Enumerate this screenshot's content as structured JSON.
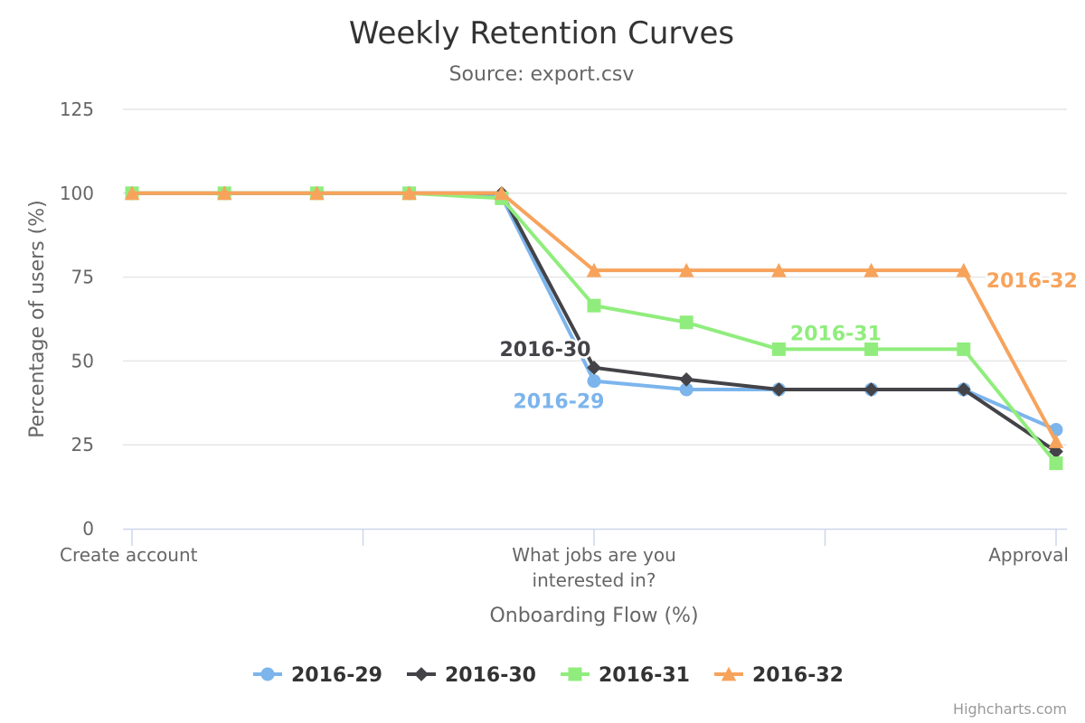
{
  "chart_data": {
    "type": "line",
    "title": "Weekly Retention Curves",
    "subtitle": "Source: export.csv",
    "xlabel": "Onboarding Flow (%)",
    "ylabel": "Percentage of users (%)",
    "ylim": [
      0,
      125
    ],
    "yticks": [
      0,
      25,
      50,
      75,
      100,
      125
    ],
    "categories": [
      "Create account",
      "",
      "",
      "",
      "",
      "What jobs are you interested in?",
      "",
      "",
      "",
      "",
      "Approval"
    ],
    "category_tick_labels": [
      {
        "index": 0,
        "lines": [
          "Create account"
        ]
      },
      {
        "index": 5,
        "lines": [
          "What jobs are you",
          "interested in?"
        ]
      },
      {
        "index": 10,
        "lines": [
          "Approval"
        ]
      }
    ],
    "grid": true,
    "legend_position": "bottom-center",
    "series": [
      {
        "name": "2016-29",
        "color": "#7cb5ec",
        "marker": "circle",
        "values": [
          100,
          100,
          100,
          100,
          99,
          44,
          41.5,
          41.5,
          41.5,
          41.5,
          29.5
        ],
        "label": "2016-29",
        "label_index": 5
      },
      {
        "name": "2016-30",
        "color": "#434348",
        "marker": "diamond",
        "values": [
          100,
          100,
          100,
          100,
          100,
          48,
          44.5,
          41.5,
          41.5,
          41.5,
          23
        ],
        "label": "2016-30",
        "label_index": 5
      },
      {
        "name": "2016-31",
        "color": "#90ed7d",
        "marker": "square",
        "values": [
          100,
          100,
          100,
          100,
          98.5,
          66.5,
          61.5,
          53.5,
          53.5,
          53.5,
          19.5
        ],
        "label": "2016-31",
        "label_index": 7
      },
      {
        "name": "2016-32",
        "color": "#f7a35c",
        "marker": "triangle",
        "values": [
          100,
          100,
          100,
          100,
          100,
          77,
          77,
          77,
          77,
          77,
          26
        ],
        "label": "2016-32",
        "label_index": 9
      }
    ]
  },
  "credits": "Highcharts.com"
}
